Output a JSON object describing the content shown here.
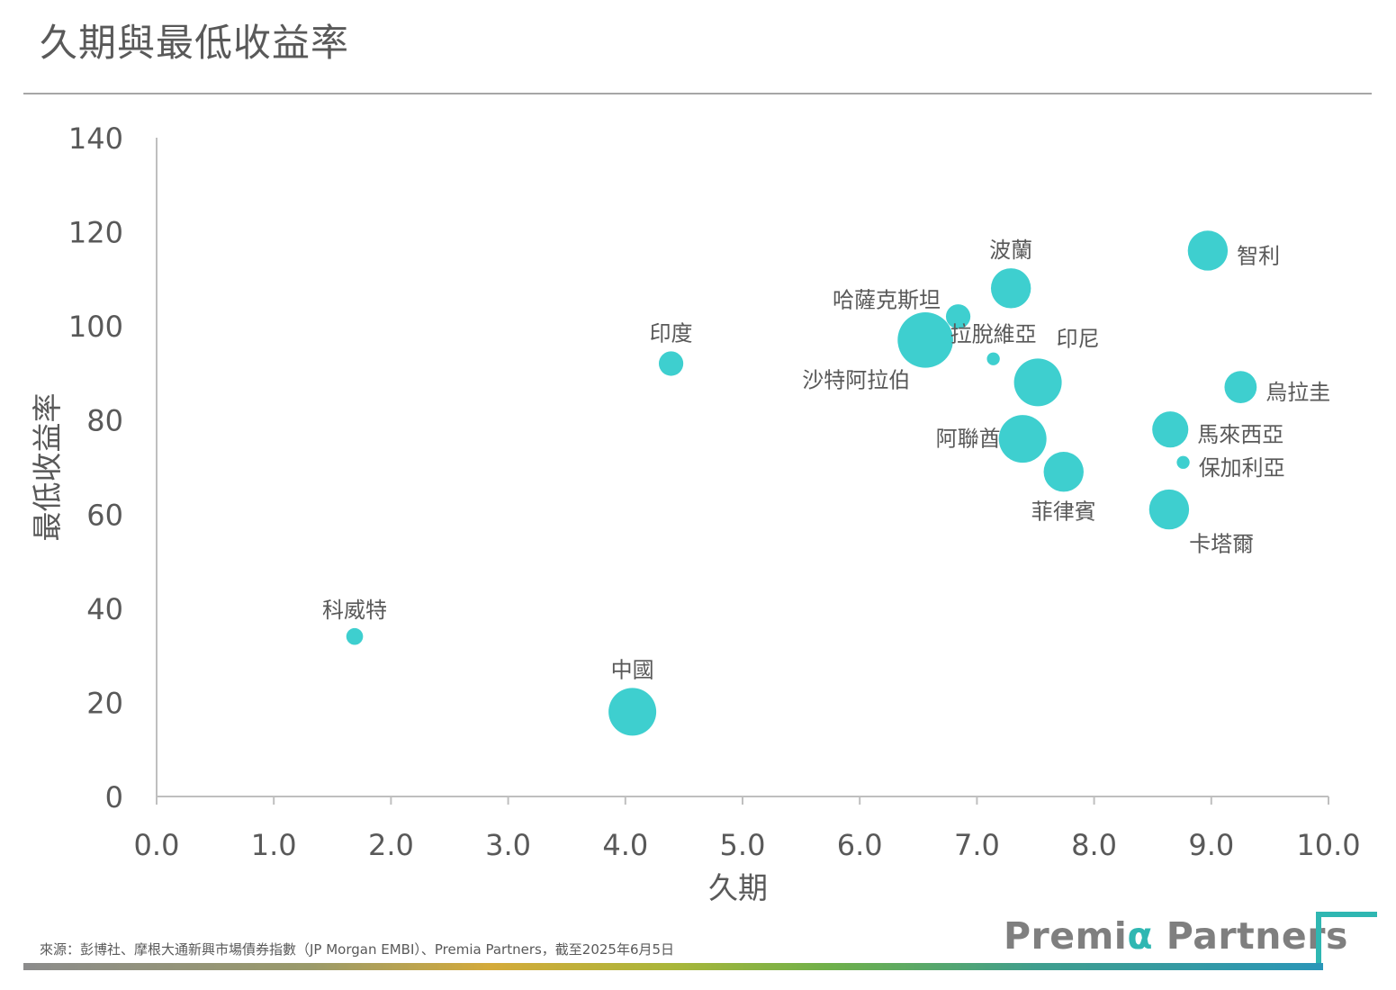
{
  "header": {
    "title": "久期與最低收益率"
  },
  "footer": {
    "source": "來源：彭博社、摩根大通新興市場債券指數（JP Morgan EMBI）、Premia Partners，截至2025年6月5日",
    "brand_prefix": "Premi",
    "brand_alpha": "α",
    "brand_suffix": " Partners"
  },
  "colors": {
    "bubble": "#3ecfcf",
    "axis": "#bfbfbf",
    "text": "#595959",
    "accent": "#2fb7b2"
  },
  "chart_data": {
    "type": "scatter",
    "title": "久期與最低收益率",
    "xlabel": "久期",
    "ylabel": "最低收益率",
    "xlim": [
      0,
      10
    ],
    "ylim": [
      0,
      140
    ],
    "x_ticks": [
      "0.0",
      "1.0",
      "2.0",
      "3.0",
      "4.0",
      "5.0",
      "6.0",
      "7.0",
      "8.0",
      "9.0",
      "10.0"
    ],
    "y_ticks": [
      "0",
      "20",
      "40",
      "60",
      "80",
      "100",
      "120",
      "140"
    ],
    "grid": false,
    "points": [
      {
        "label": "科威特",
        "x": 1.69,
        "y": 34,
        "size": 1,
        "label_pos": "above"
      },
      {
        "label": "中國",
        "x": 4.06,
        "y": 18,
        "size": 5,
        "label_pos": "above"
      },
      {
        "label": "印度",
        "x": 4.39,
        "y": 92,
        "size": 2,
        "label_pos": "above"
      },
      {
        "label": "沙特阿拉伯",
        "x": 6.56,
        "y": 97,
        "size": 6,
        "label_pos": "below-left"
      },
      {
        "label": "哈薩克斯坦",
        "x": 6.84,
        "y": 102,
        "size": 2,
        "label_pos": "above-left"
      },
      {
        "label": "波蘭",
        "x": 7.29,
        "y": 108,
        "size": 4,
        "label_pos": "above"
      },
      {
        "label": "拉脫維亞",
        "x": 7.14,
        "y": 93,
        "size": 0.5,
        "label_pos": "above"
      },
      {
        "label": "印尼",
        "x": 7.52,
        "y": 88,
        "size": 5,
        "label_pos": "above-right"
      },
      {
        "label": "阿聯酋",
        "x": 7.39,
        "y": 76,
        "size": 5,
        "label_pos": "left"
      },
      {
        "label": "菲律賓",
        "x": 7.74,
        "y": 69,
        "size": 4,
        "label_pos": "below"
      },
      {
        "label": "智利",
        "x": 8.97,
        "y": 116,
        "size": 4,
        "label_pos": "right"
      },
      {
        "label": "烏拉圭",
        "x": 9.25,
        "y": 87,
        "size": 3,
        "label_pos": "right"
      },
      {
        "label": "馬來西亞",
        "x": 8.65,
        "y": 78,
        "size": 3.5,
        "label_pos": "right"
      },
      {
        "label": "保加利亞",
        "x": 8.76,
        "y": 71,
        "size": 0.5,
        "label_pos": "right"
      },
      {
        "label": "卡塔爾",
        "x": 8.64,
        "y": 61,
        "size": 4,
        "label_pos": "below-right"
      }
    ]
  }
}
